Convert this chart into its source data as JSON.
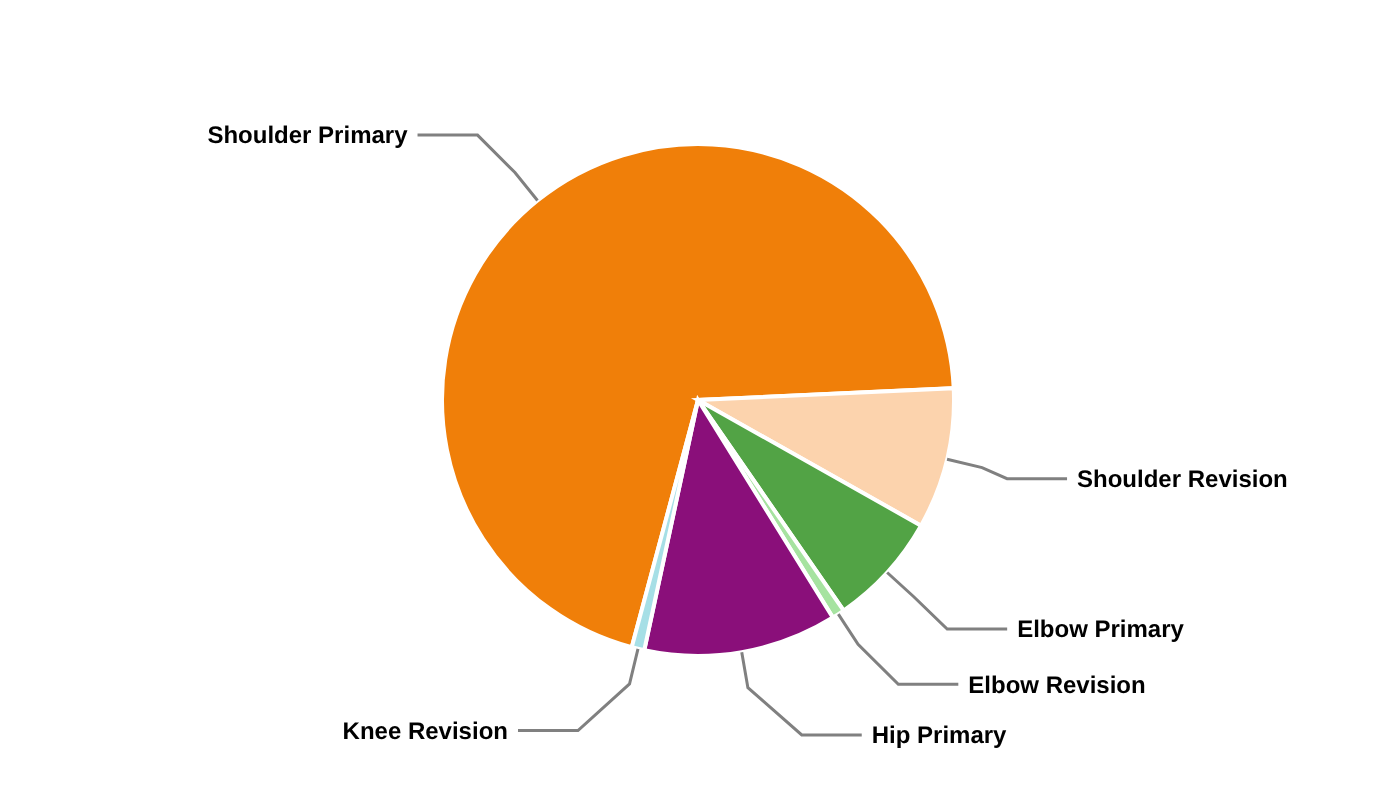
{
  "chart_data": {
    "type": "pie",
    "categories": [
      "Shoulder Primary",
      "Shoulder Revision",
      "Elbow Primary",
      "Elbow Revision",
      "Hip Primary",
      "Knee Revision"
    ],
    "values": [
      70.1,
      8.9,
      7.2,
      0.8,
      12.2,
      0.8
    ],
    "colors": [
      "#f07f09",
      "#fcd3ad",
      "#52a345",
      "#a6e3a0",
      "#8a0f7a",
      "#a6dfe6"
    ]
  }
}
